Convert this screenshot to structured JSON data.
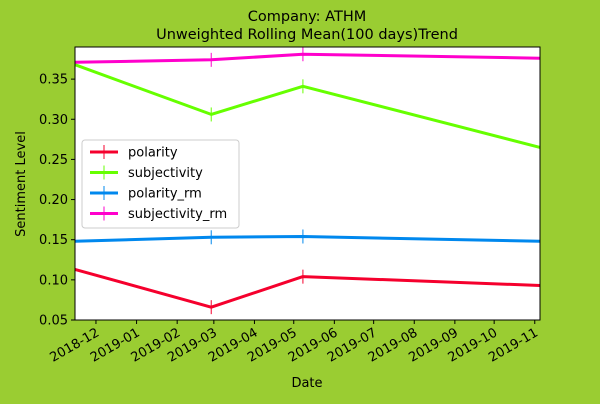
{
  "colors": {
    "figure_background": "#9acd32",
    "plot_background": "#ffffff"
  },
  "chart_data": {
    "type": "line",
    "title_line1": "Company: ATHM",
    "title_line2": "Unweighted Rolling Mean(100 days)Trend",
    "xlabel": "Date",
    "ylabel": "Sentiment Level",
    "x_tick_labels": [
      "2018-12",
      "2019-01",
      "2019-02",
      "2019-03",
      "2019-04",
      "2019-05",
      "2019-06",
      "2019-07",
      "2019-08",
      "2019-09",
      "2019-10",
      "2019-11"
    ],
    "x_tick_dates": [
      "2018-12-01",
      "2019-01-01",
      "2019-02-01",
      "2019-03-01",
      "2019-04-01",
      "2019-05-01",
      "2019-06-01",
      "2019-07-01",
      "2019-08-01",
      "2019-09-01",
      "2019-10-01",
      "2019-11-01"
    ],
    "xlim": [
      "2018-11-15",
      "2019-11-05"
    ],
    "ylim": [
      0.05,
      0.39
    ],
    "y_ticks": [
      0.05,
      0.1,
      0.15,
      0.2,
      0.25,
      0.3,
      0.35
    ],
    "y_tick_labels": [
      "0.05",
      "0.10",
      "0.15",
      "0.20",
      "0.25",
      "0.30",
      "0.35"
    ],
    "x": [
      "2018-11-15",
      "2019-02-27",
      "2019-05-08",
      "2019-11-05"
    ],
    "legend_position": "center-left",
    "series": [
      {
        "name": "polarity",
        "color": "#f5002d",
        "values": [
          0.113,
          0.066,
          0.104,
          0.093
        ]
      },
      {
        "name": "subjectivity",
        "color": "#66ff00",
        "values": [
          0.368,
          0.306,
          0.341,
          0.265
        ]
      },
      {
        "name": "polarity_rm",
        "color": "#0088ee",
        "values": [
          0.148,
          0.153,
          0.154,
          0.148
        ]
      },
      {
        "name": "subjectivity_rm",
        "color": "#ff00cc",
        "values": [
          0.371,
          0.374,
          0.381,
          0.376
        ]
      }
    ],
    "markers_at": [
      "2019-02-27",
      "2019-05-08"
    ]
  }
}
